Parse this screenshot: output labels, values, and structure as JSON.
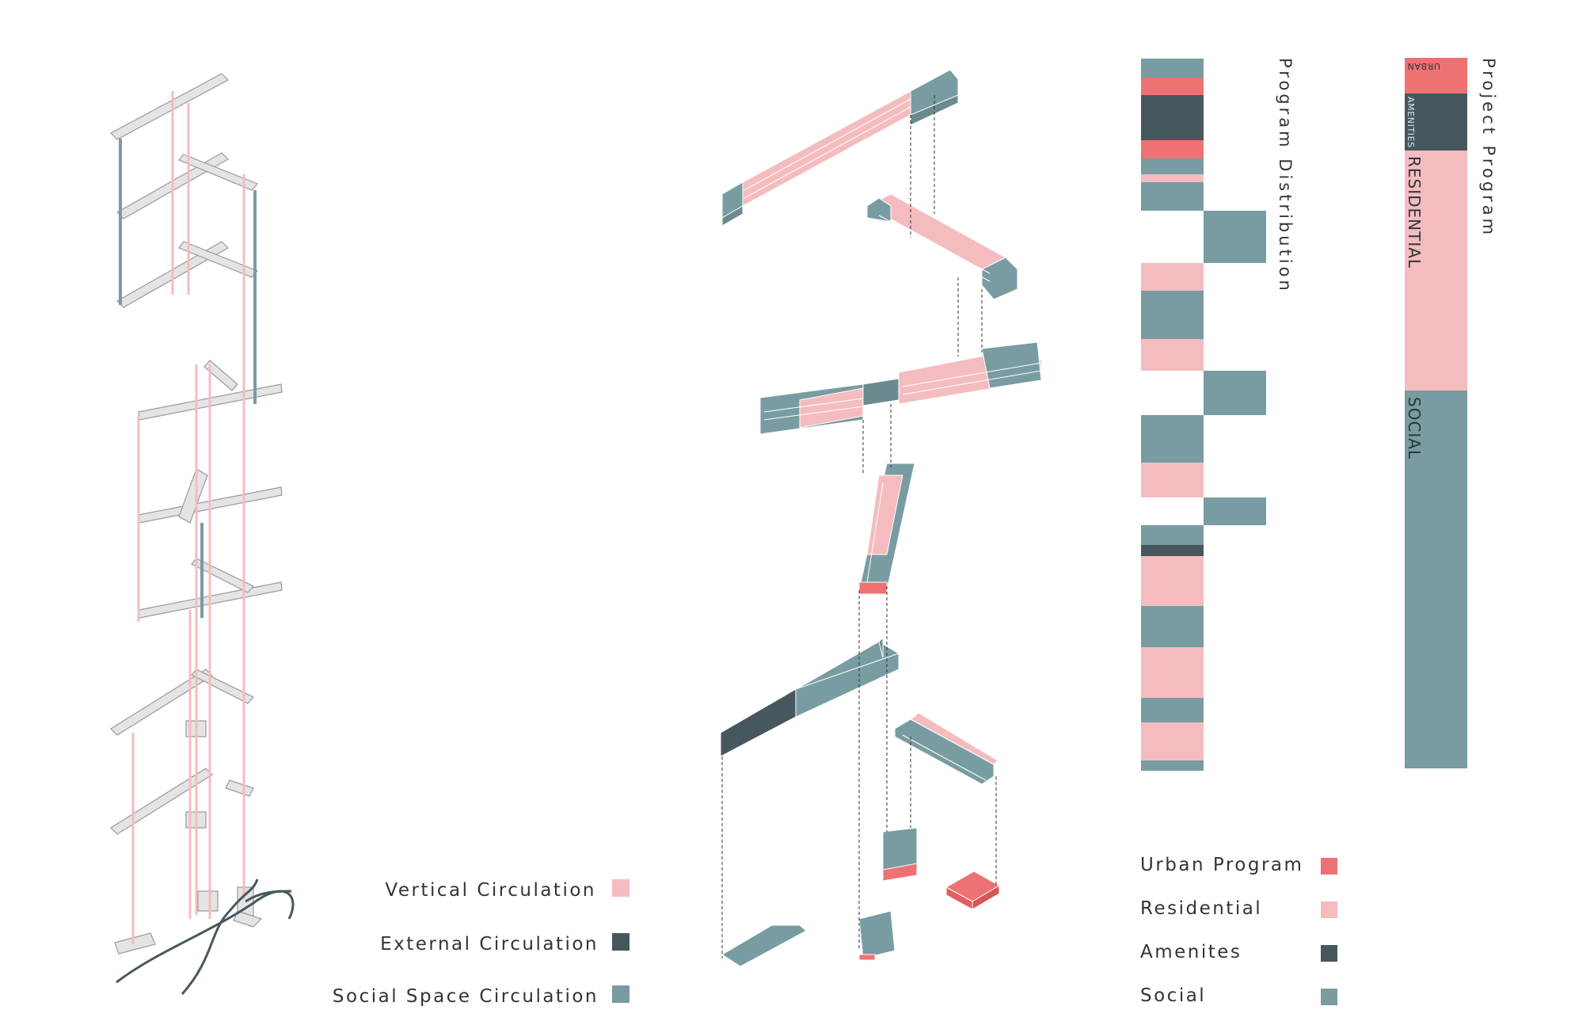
{
  "colors": {
    "urban": "#ee7273",
    "residential": "#f4bcbf",
    "amenities": "#46585d",
    "social": "#789ca1",
    "slab": "#e4e4e4",
    "slab_edge": "#9a9a9a"
  },
  "left_legend": [
    {
      "label": "Vertical Circulation",
      "color": "#f4bcbf"
    },
    {
      "label": "External Circulation",
      "color": "#46585d"
    },
    {
      "label": "Social Space Circulation",
      "color": "#789ca1"
    }
  ],
  "right_legend": [
    {
      "label": "Urban Program",
      "color": "#ee7273"
    },
    {
      "label": "Residential",
      "color": "#f4bcbf"
    },
    {
      "label": "Amenites",
      "color": "#46585d"
    },
    {
      "label": "Social",
      "color": "#789ca1"
    }
  ],
  "program_distribution": {
    "title": "Program Distribution",
    "sequence": [
      "social",
      "urban",
      "amenities",
      "urban",
      "social",
      "residential",
      "social",
      "social (offset)",
      "residential",
      "social",
      "residential",
      "social (offset)",
      "social",
      "residential",
      "social (offset)",
      "social",
      "amenities",
      "residential",
      "social",
      "residential",
      "social",
      "residential",
      "social"
    ]
  },
  "project_program": {
    "title": "Project Program",
    "segments": [
      {
        "label": "URBAN",
        "color": "#ee7273"
      },
      {
        "label": "AMENITIES",
        "color": "#46585d"
      },
      {
        "label": "RESIDENTIAL",
        "color": "#f4bcbf"
      },
      {
        "label": "SOCIAL",
        "color": "#789ca1"
      }
    ]
  }
}
